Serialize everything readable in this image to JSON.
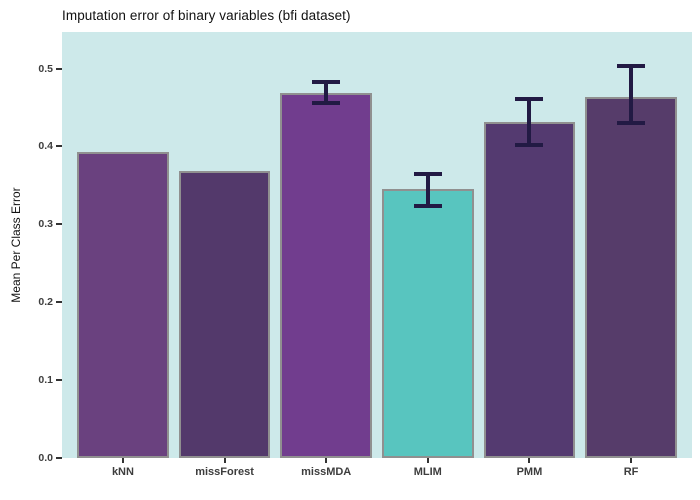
{
  "page": {
    "title": "Imputation error of binary variables (bfi dataset)"
  },
  "chart_data": {
    "type": "bar",
    "title": "Imputation error of binary variables (bfi dataset)",
    "xlabel": "",
    "ylabel": "Mean Per Class Error",
    "categories": [
      "kNN",
      "missForest",
      "missMDA",
      "MLIM",
      "PMM",
      "RF"
    ],
    "values": [
      0.393,
      0.368,
      0.469,
      0.345,
      0.431,
      0.464
    ],
    "error_low": [
      null,
      null,
      0.456,
      0.323,
      0.402,
      0.43
    ],
    "error_high": [
      null,
      null,
      0.483,
      0.365,
      0.461,
      0.503
    ],
    "bar_colors": [
      "#6a417f",
      "#53396b",
      "#713d8e",
      "#58c5bf",
      "#543a70",
      "#563c6a"
    ],
    "ylim": [
      0,
      0.547
    ],
    "yticks": [
      "0.0",
      "0.1",
      "0.2",
      "0.3",
      "0.4",
      "0.5"
    ],
    "grid": false,
    "legend": "none",
    "panel_bg": "#cde9ea",
    "bar_border_color": "#909090",
    "errorbar_color": "#221a44",
    "axis_text_color": "#3d3d3d"
  }
}
